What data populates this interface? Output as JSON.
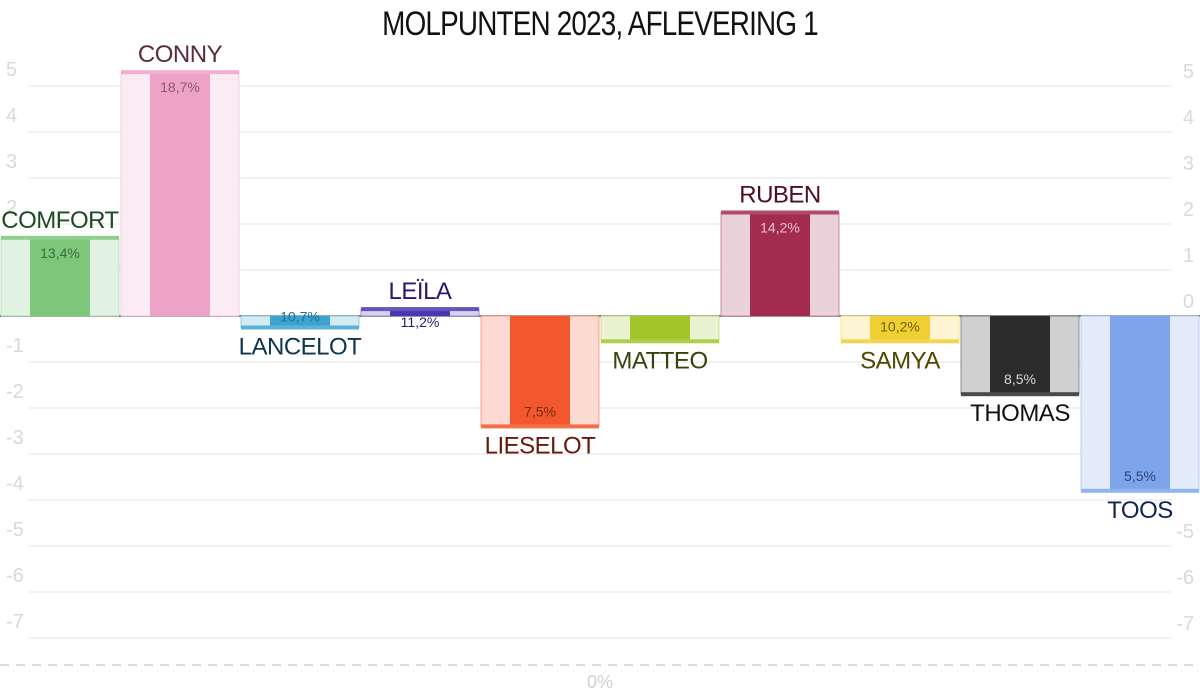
{
  "chart_data": {
    "type": "bar",
    "title": "MOLPUNTEN 2023, AFLEVERING 1",
    "categories": [
      "COMFORT",
      "CONNY",
      "LANCELOT",
      "LEÏLA",
      "LIESELOT",
      "MATTEO",
      "RUBEN",
      "SAMYA",
      "THOMAS",
      "TOOS"
    ],
    "values": [
      1.7,
      5.3,
      -0.25,
      0.15,
      -2.4,
      -0.55,
      2.25,
      -0.55,
      -1.7,
      -3.8
    ],
    "pct_labels": [
      "13,4%",
      "18,7%",
      "10,7%",
      "11,2%",
      "7,5%",
      "",
      "14,2%",
      "10,2%",
      "8,5%",
      "5,5%"
    ],
    "colors": [
      "#7dc67a",
      "#eea2c8",
      "#3fa3cf",
      "#4b35b3",
      "#f2572e",
      "#a2c52c",
      "#a22c50",
      "#f0cf35",
      "#2b2b2b",
      "#7ea5ec"
    ],
    "name_colors": [
      "#1f4a1f",
      "#5a2a40",
      "#0d3550",
      "#2d1470",
      "#6a1808",
      "#38420c",
      "#4e0e20",
      "#4f4600",
      "#111111",
      "#0f2550"
    ],
    "pct_colors": [
      "#3a6e3a",
      "#8a5a70",
      "#1c6f9a",
      "#2d1470",
      "#7a2a10",
      "#5a6410",
      "#f0c0cc",
      "#6f6400",
      "#d8d8d8",
      "#2a4478"
    ],
    "left_axis": {
      "ticks": [
        5,
        4,
        3,
        2,
        1,
        0,
        -1,
        -2,
        -3,
        -4,
        -5,
        -6,
        -7
      ],
      "labels": [
        "5",
        "4",
        "3",
        "2",
        "1",
        "0",
        "-1",
        "-2",
        "-3",
        "-4",
        "-5",
        "-6",
        "-7"
      ]
    },
    "right_axis": {
      "ticks": [
        5,
        4,
        3,
        2,
        1,
        0,
        -1,
        -2,
        -3,
        -4,
        -5,
        -6,
        -7
      ],
      "labels": [
        "5",
        "4",
        "3",
        "2",
        "1",
        "0",
        "-1",
        "-2",
        "-3",
        "-4",
        "-5",
        "-6",
        "-7"
      ]
    },
    "bottom_label": "0%",
    "grid": true,
    "ylim": [
      -7.5,
      5.5
    ]
  }
}
